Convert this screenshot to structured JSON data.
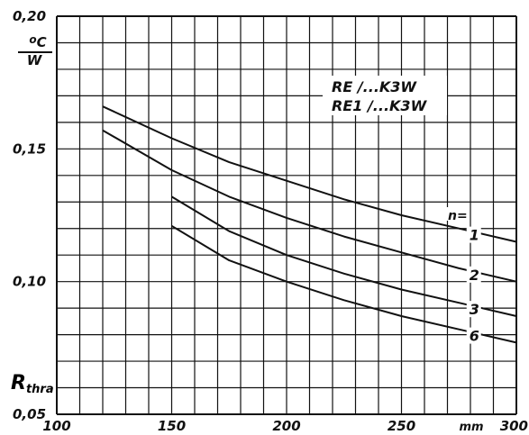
{
  "chart_data": {
    "type": "line",
    "ylabel": "R",
    "ylabel_sub": "thra",
    "y_unit_top": "oC",
    "y_unit_bottom": "W",
    "x_unit": "mm",
    "xlim": [
      100,
      300
    ],
    "ylim": [
      0.05,
      0.2
    ],
    "x_ticks": [
      {
        "value": 100,
        "label": "100"
      },
      {
        "value": 150,
        "label": "150"
      },
      {
        "value": 200,
        "label": "200"
      },
      {
        "value": 250,
        "label": "250"
      },
      {
        "value": 300,
        "label": "300"
      }
    ],
    "y_ticks": [
      {
        "value": 0.05,
        "label": "0,05"
      },
      {
        "value": 0.1,
        "label": "0,10"
      },
      {
        "value": 0.15,
        "label": "0,15"
      },
      {
        "value": 0.2,
        "label": "0,20"
      }
    ],
    "grid": true,
    "legend_title": "n=",
    "model_lines": [
      "RE /...K3W",
      "RE1 /...K3W"
    ],
    "series": [
      {
        "name": "1",
        "x": [
          120,
          150,
          175,
          200,
          225,
          250,
          275,
          300
        ],
        "y": [
          0.166,
          0.154,
          0.145,
          0.138,
          0.131,
          0.125,
          0.12,
          0.115
        ]
      },
      {
        "name": "2",
        "x": [
          120,
          150,
          175,
          200,
          225,
          250,
          275,
          300
        ],
        "y": [
          0.157,
          0.142,
          0.132,
          0.124,
          0.117,
          0.111,
          0.105,
          0.1
        ]
      },
      {
        "name": "3",
        "x": [
          150,
          175,
          200,
          225,
          250,
          275,
          300
        ],
        "y": [
          0.132,
          0.119,
          0.11,
          0.103,
          0.097,
          0.092,
          0.087
        ]
      },
      {
        "name": "6",
        "x": [
          150,
          175,
          200,
          225,
          250,
          275,
          300
        ],
        "y": [
          0.121,
          0.108,
          0.1,
          0.093,
          0.087,
          0.082,
          0.077
        ]
      }
    ]
  }
}
